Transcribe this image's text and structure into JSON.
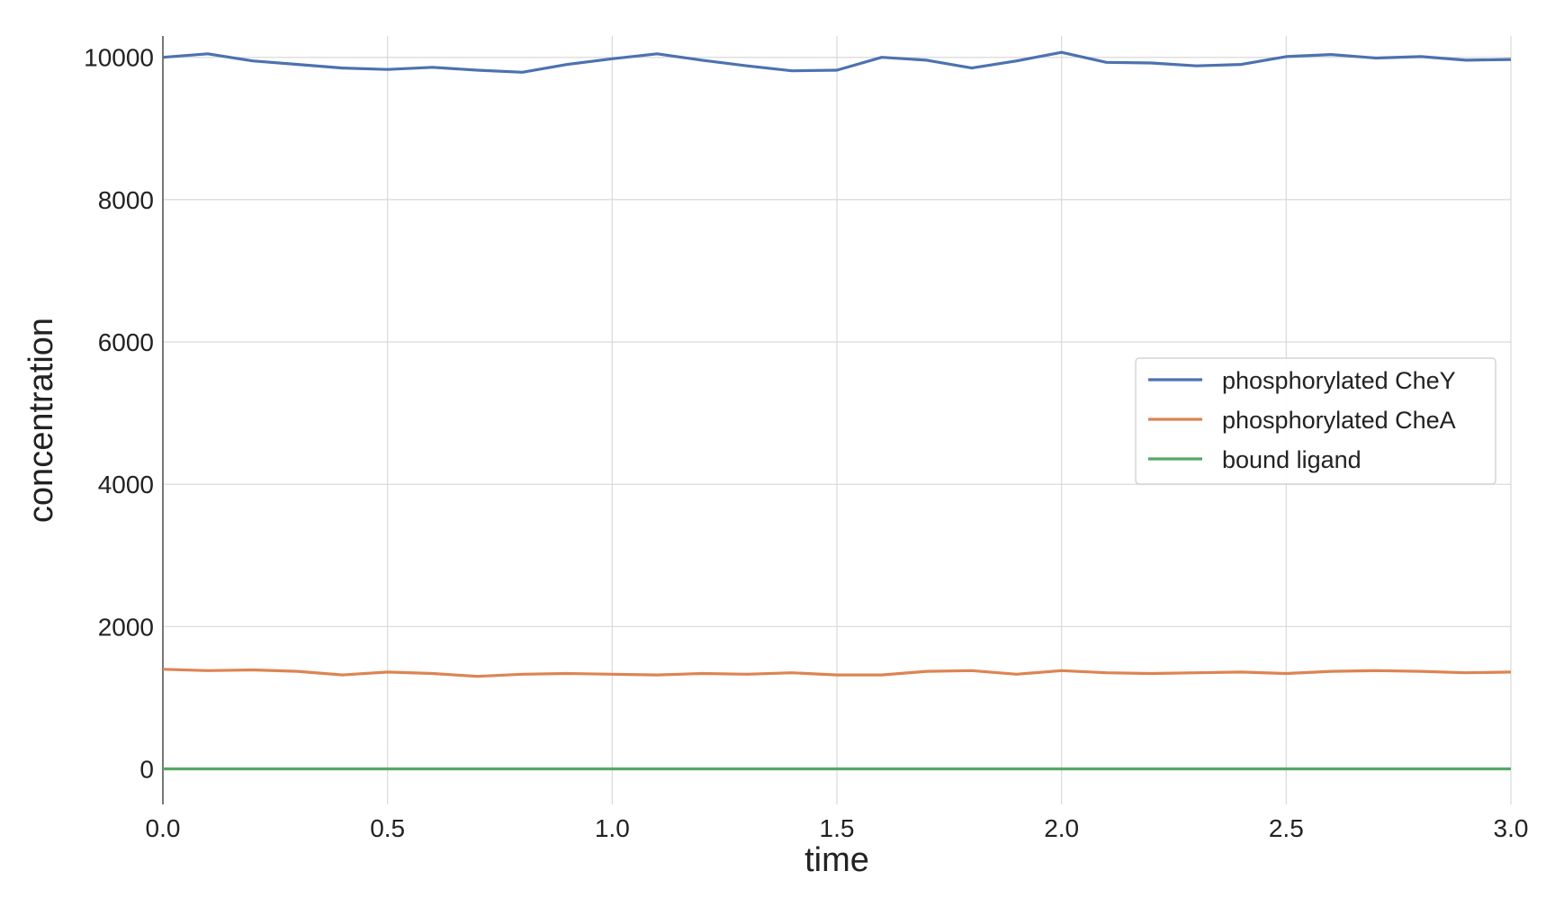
{
  "chart_data": {
    "type": "line",
    "xlabel": "time",
    "ylabel": "concentration",
    "xlim": [
      0.0,
      3.0
    ],
    "ylim": [
      -500,
      10300
    ],
    "x_ticks": [
      0.0,
      0.5,
      1.0,
      1.5,
      2.0,
      2.5,
      3.0
    ],
    "x_tick_labels": [
      "0.0",
      "0.5",
      "1.0",
      "1.5",
      "2.0",
      "2.5",
      "3.0"
    ],
    "y_ticks": [
      0,
      2000,
      4000,
      6000,
      8000,
      10000
    ],
    "y_tick_labels": [
      "0",
      "2000",
      "4000",
      "6000",
      "8000",
      "10000"
    ],
    "grid": true,
    "legend_position": "center-right",
    "x": [
      0.0,
      0.1,
      0.2,
      0.3,
      0.4,
      0.5,
      0.6,
      0.7,
      0.8,
      0.9,
      1.0,
      1.1,
      1.2,
      1.3,
      1.4,
      1.5,
      1.6,
      1.7,
      1.8,
      1.9,
      2.0,
      2.1,
      2.2,
      2.3,
      2.4,
      2.5,
      2.6,
      2.7,
      2.8,
      2.9,
      3.0
    ],
    "series": [
      {
        "name": "phosphorylated CheY",
        "color": "#4c72b0",
        "values": [
          10000,
          10050,
          9950,
          9900,
          9850,
          9830,
          9860,
          9820,
          9790,
          9900,
          9980,
          10050,
          9960,
          9880,
          9810,
          9820,
          10000,
          9960,
          9850,
          9950,
          10070,
          9930,
          9920,
          9880,
          9900,
          10010,
          10040,
          9990,
          10010,
          9960,
          9970
        ]
      },
      {
        "name": "phosphorylated CheA",
        "color": "#dd8452",
        "values": [
          1400,
          1380,
          1390,
          1370,
          1320,
          1360,
          1340,
          1300,
          1330,
          1340,
          1330,
          1320,
          1340,
          1330,
          1350,
          1320,
          1320,
          1370,
          1380,
          1330,
          1380,
          1350,
          1340,
          1350,
          1360,
          1340,
          1370,
          1380,
          1370,
          1350,
          1360
        ]
      },
      {
        "name": "bound ligand",
        "color": "#55a868",
        "values": [
          0,
          0,
          0,
          0,
          0,
          0,
          0,
          0,
          0,
          0,
          0,
          0,
          0,
          0,
          0,
          0,
          0,
          0,
          0,
          0,
          0,
          0,
          0,
          0,
          0,
          0,
          0,
          0,
          0,
          0,
          0
        ]
      }
    ]
  }
}
